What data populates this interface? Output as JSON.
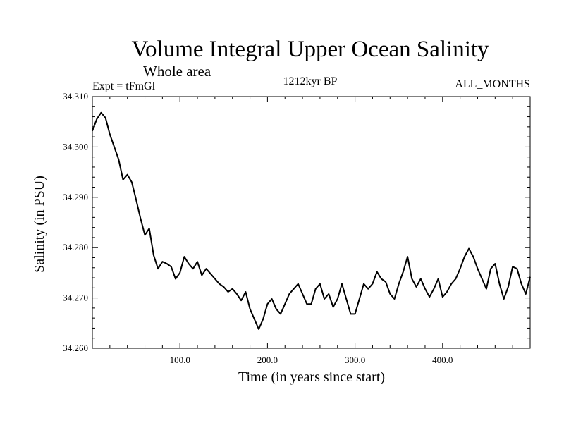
{
  "chart_data": {
    "type": "line",
    "title": "Volume Integral Upper Ocean Salinity",
    "subtitle": "Whole area",
    "experiment_label": "Expt = tFmGl",
    "period_label": "1212kyr BP",
    "months_label": "ALL_MONTHS",
    "xlabel": "Time (in years since start)",
    "ylabel": "Salinity (in PSU)",
    "xlim": [
      0,
      500
    ],
    "ylim": [
      34.26,
      34.31
    ],
    "x_ticks": [
      100,
      200,
      300,
      400
    ],
    "x_tick_labels": [
      "100.0",
      "200.0",
      "300.0",
      "400.0"
    ],
    "y_ticks": [
      34.26,
      34.27,
      34.28,
      34.29,
      34.3,
      34.31
    ],
    "y_tick_labels": [
      "34.260",
      "34.270",
      "34.280",
      "34.290",
      "34.300",
      "34.310"
    ],
    "series": [
      {
        "name": "salinity",
        "x": [
          0,
          5,
          10,
          15,
          20,
          25,
          30,
          35,
          40,
          45,
          50,
          55,
          60,
          65,
          70,
          75,
          80,
          85,
          90,
          95,
          100,
          105,
          110,
          115,
          120,
          125,
          130,
          135,
          140,
          145,
          150,
          155,
          160,
          165,
          170,
          175,
          180,
          185,
          190,
          195,
          200,
          205,
          210,
          215,
          220,
          225,
          230,
          235,
          240,
          245,
          250,
          255,
          260,
          265,
          270,
          275,
          280,
          285,
          290,
          295,
          300,
          305,
          310,
          315,
          320,
          325,
          330,
          335,
          340,
          345,
          350,
          355,
          360,
          365,
          370,
          375,
          380,
          385,
          390,
          395,
          400,
          405,
          410,
          415,
          420,
          425,
          430,
          435,
          440,
          445,
          450,
          455,
          460,
          465,
          470,
          475,
          480,
          485,
          490,
          495,
          500
        ],
        "values": [
          34.3032,
          34.3055,
          34.3068,
          34.3058,
          34.3025,
          34.3,
          34.2975,
          34.2935,
          34.2945,
          34.293,
          34.2895,
          34.2858,
          34.2825,
          34.2838,
          34.2785,
          34.2758,
          34.2772,
          34.2768,
          34.2762,
          34.2738,
          34.275,
          34.2782,
          34.2768,
          34.2758,
          34.2772,
          34.2745,
          34.2758,
          34.2748,
          34.2738,
          34.2728,
          34.2722,
          34.2712,
          34.2718,
          34.2708,
          34.2695,
          34.2712,
          34.2678,
          34.2658,
          34.2638,
          34.2658,
          34.2688,
          34.2698,
          34.2678,
          34.2668,
          34.2688,
          34.2708,
          34.2718,
          34.2728,
          34.2708,
          34.2688,
          34.2688,
          34.2718,
          34.2728,
          34.2698,
          34.2708,
          34.2682,
          34.2698,
          34.2728,
          34.2698,
          34.2668,
          34.2668,
          34.2698,
          34.2728,
          34.2718,
          34.2728,
          34.2752,
          34.2738,
          34.2732,
          34.2708,
          34.2698,
          34.2728,
          34.2752,
          34.2782,
          34.2738,
          34.2722,
          34.2738,
          34.2718,
          34.2702,
          34.2718,
          34.2738,
          34.2702,
          34.2712,
          34.2728,
          34.2738,
          34.2758,
          34.2782,
          34.2798,
          34.2782,
          34.2758,
          34.2738,
          34.2718,
          34.2758,
          34.2768,
          34.2728,
          34.2698,
          34.2722,
          34.2762,
          34.2758,
          34.2728,
          34.2708,
          34.2742
        ]
      }
    ]
  }
}
